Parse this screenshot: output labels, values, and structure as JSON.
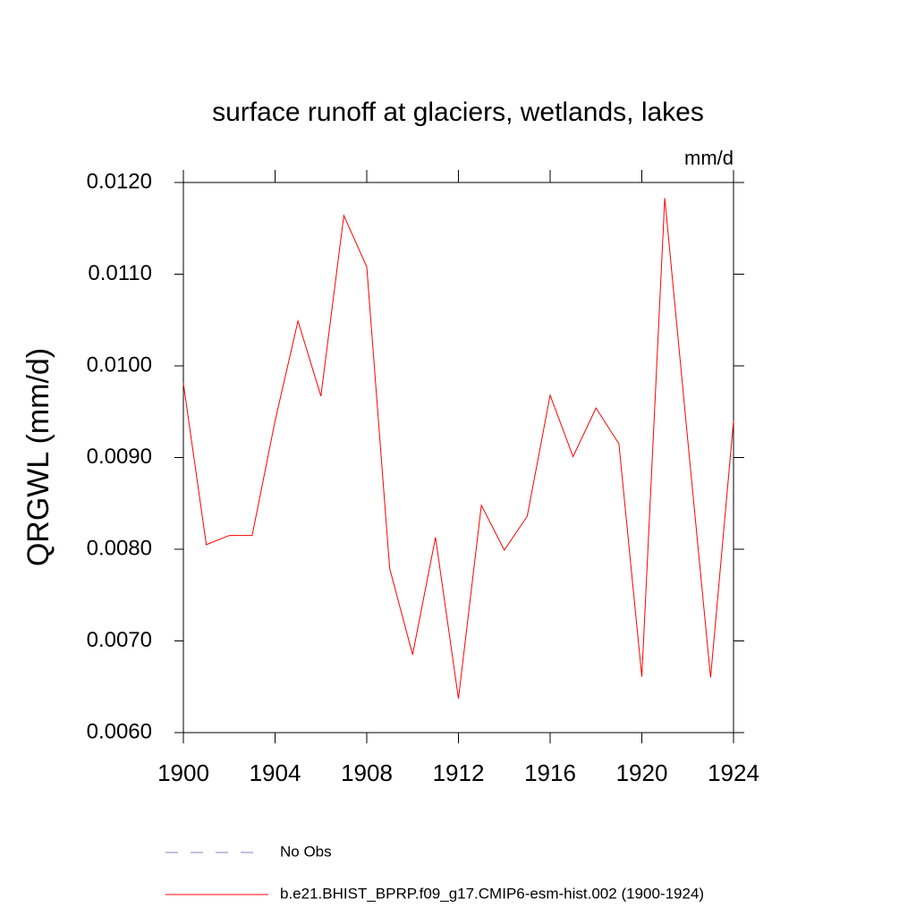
{
  "chart_data": {
    "type": "line",
    "title": "surface runoff at glaciers, wetlands, lakes",
    "units": "mm/d",
    "ylabel": "QRGWL  (mm/d)",
    "x": [
      1900,
      1901,
      1902,
      1903,
      1904,
      1905,
      1906,
      1907,
      1908,
      1909,
      1910,
      1911,
      1912,
      1913,
      1914,
      1915,
      1916,
      1917,
      1918,
      1919,
      1920,
      1921,
      1922,
      1923,
      1924
    ],
    "series": [
      {
        "name": "b.e21.BHIST_BPRP.f09_g17.CMIP6-esm-hist.002 (1900-1924)",
        "color": "#ff0000",
        "values": [
          0.00981,
          0.00805,
          0.00815,
          0.00815,
          0.0094,
          0.01049,
          0.00967,
          0.01164,
          0.01108,
          0.00779,
          0.00685,
          0.00813,
          0.00637,
          0.00848,
          0.00799,
          0.00836,
          0.00968,
          0.00901,
          0.00954,
          0.00915,
          0.00661,
          0.01183,
          0.0092,
          0.0066,
          0.0094
        ]
      }
    ],
    "legend_extra": [
      {
        "name": "No Obs",
        "color": "#8080c0",
        "dashed": true
      }
    ],
    "xlim": [
      1900,
      1924
    ],
    "xticks": [
      1900,
      1904,
      1908,
      1912,
      1916,
      1920,
      1924
    ],
    "ylim": [
      0.006,
      0.012
    ],
    "yticks": [
      {
        "value": 0.006,
        "label": "0.0060"
      },
      {
        "value": 0.007,
        "label": "0.0070"
      },
      {
        "value": 0.008,
        "label": "0.0080"
      },
      {
        "value": 0.009,
        "label": "0.0090"
      },
      {
        "value": 0.01,
        "label": "0.0100"
      },
      {
        "value": 0.011,
        "label": "0.0110"
      },
      {
        "value": 0.012,
        "label": "0.0120"
      }
    ]
  }
}
